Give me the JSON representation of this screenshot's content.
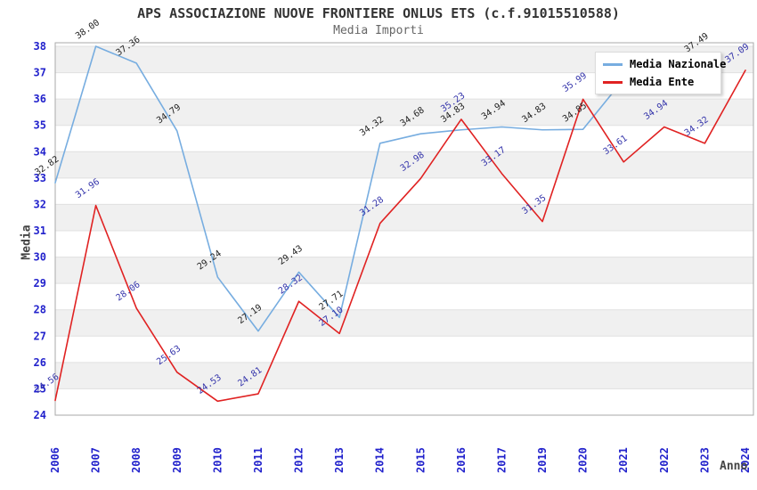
{
  "header": {
    "title": "APS ASSOCIAZIONE NUOVE FRONTIERE ONLUS ETS (c.f.91015510588)",
    "subtitle": "Media Importi"
  },
  "axes": {
    "y_title": "Media",
    "x_title": "Anno",
    "y_ticks": [
      24,
      25,
      26,
      27,
      28,
      29,
      30,
      31,
      32,
      33,
      34,
      35,
      36,
      37,
      38
    ]
  },
  "legend": {
    "items": [
      {
        "label": "Media Nazionale",
        "color": "#77ADE0"
      },
      {
        "label": "Media Ente",
        "color": "#E02222"
      }
    ]
  },
  "chart_data": {
    "type": "line",
    "title": "APS ASSOCIAZIONE NUOVE FRONTIERE ONLUS ETS (c.f.91015510588)",
    "subtitle": "Media Importi",
    "xlabel": "Anno",
    "ylabel": "Media",
    "ylim": [
      24,
      38
    ],
    "grid": "horizontal-alternating-bands",
    "legend_position": "top-right",
    "categories": [
      "2006",
      "2007",
      "2008",
      "2009",
      "2010",
      "2011",
      "2012",
      "2013",
      "2014",
      "2015",
      "2016",
      "2017",
      "2019",
      "2020",
      "2021",
      "2022",
      "2023",
      "2024"
    ],
    "series": [
      {
        "name": "Media Nazionale",
        "color": "#77ADE0",
        "label_color": "#222222",
        "values": [
          32.82,
          38.0,
          37.36,
          34.79,
          29.24,
          27.19,
          29.43,
          27.71,
          34.32,
          34.68,
          34.83,
          34.94,
          34.83,
          34.85,
          36.75,
          37.1,
          37.49,
          null
        ],
        "show_label": [
          true,
          true,
          true,
          true,
          true,
          true,
          true,
          true,
          true,
          true,
          true,
          true,
          true,
          true,
          false,
          false,
          true,
          false
        ]
      },
      {
        "name": "Media Ente",
        "color": "#E02222",
        "label_color": "#3333AA",
        "values": [
          24.56,
          31.96,
          28.06,
          25.63,
          24.53,
          24.81,
          28.32,
          27.1,
          31.28,
          32.98,
          35.23,
          33.17,
          31.35,
          35.99,
          33.61,
          34.94,
          34.32,
          37.09
        ],
        "show_label": [
          true,
          true,
          true,
          true,
          true,
          true,
          true,
          true,
          true,
          true,
          true,
          true,
          true,
          true,
          true,
          true,
          true,
          true
        ]
      }
    ]
  },
  "colors": {
    "tick": "#2222CC",
    "band": "#F0F0F0",
    "gridline": "#E0E0E0",
    "border": "#AAAAAA",
    "title": "#333333",
    "subtitle": "#666666",
    "axis_title": "#444444"
  }
}
